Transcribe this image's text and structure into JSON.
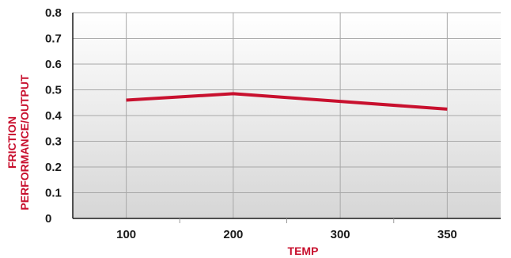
{
  "chart_data": {
    "type": "line",
    "title": "",
    "xlabel": "TEMP",
    "ylabel_lines": [
      "FRICTION",
      "PERFORMANCE/OUTPUT"
    ],
    "categories": [
      "100",
      "200",
      "300",
      "350"
    ],
    "y_ticks": [
      "0",
      "0.1",
      "0.2",
      "0.3",
      "0.4",
      "0.5",
      "0.6",
      "0.7",
      "0.8"
    ],
    "ylim": [
      0,
      0.8
    ],
    "grid": true,
    "series": [
      {
        "values": [
          0.46,
          0.485,
          0.455,
          0.425
        ],
        "color": "#c8102e"
      }
    ],
    "colors": {
      "accent": "#c8102e",
      "plot_background_top": "#ffffff",
      "plot_background_bottom": "#d6d6d6",
      "grid": "#a8a8a8",
      "axis": "#1a1a1a"
    }
  }
}
